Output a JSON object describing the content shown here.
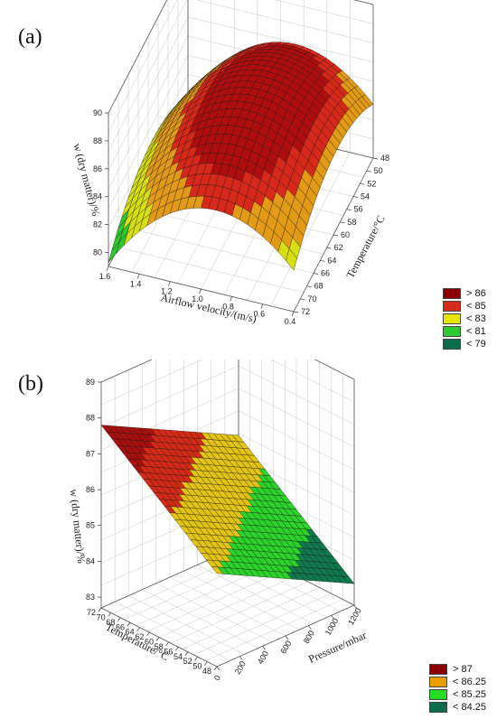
{
  "chart_data": [
    {
      "type": "surface3d",
      "panel_label": "(a)",
      "x_axis": {
        "label": "Airflow velocity/(m/s)",
        "ticks": [
          "1.6",
          "1.4",
          "1.2",
          "1.0",
          "0.8",
          "0.6",
          "0.4"
        ],
        "range": [
          0.4,
          1.6
        ]
      },
      "y_axis": {
        "label": "Temperature/°C",
        "ticks": [
          "48",
          "50",
          "52",
          "54",
          "56",
          "58",
          "60",
          "62",
          "64",
          "66",
          "68",
          "70",
          "72"
        ],
        "range": [
          48,
          72
        ]
      },
      "z_axis": {
        "label": "w (dry matter)/%",
        "ticks": [
          "80",
          "82",
          "84",
          "86",
          "88",
          "90"
        ],
        "range": [
          79,
          90
        ]
      },
      "surface": {
        "shape": "dome",
        "peak": 87.5,
        "peak_at": {
          "x": 0.9,
          "y": 62
        },
        "min_corner": 79
      },
      "legend": [
        {
          "label": "> 86",
          "color": "#8b0000"
        },
        {
          "label": "< 85",
          "color": "#d42a1a"
        },
        {
          "label": "< 83",
          "color": "#e6e600"
        },
        {
          "label": "< 81",
          "color": "#2ecc2e"
        },
        {
          "label": "< 79",
          "color": "#0a6e4a"
        }
      ]
    },
    {
      "type": "surface3d",
      "panel_label": "(b)",
      "x_axis": {
        "label": "Pressure/mbar",
        "ticks": [
          "0",
          "200",
          "400",
          "600",
          "800",
          "1000",
          "1200"
        ],
        "range": [
          0,
          1200
        ]
      },
      "y_axis": {
        "label": "Temperature/°C",
        "ticks": [
          "72",
          "70",
          "68",
          "66",
          "64",
          "62",
          "60",
          "58",
          "56",
          "54",
          "52",
          "50",
          "48"
        ],
        "range": [
          48,
          72
        ]
      },
      "z_axis": {
        "label": "w (dry matter)/%",
        "ticks": [
          "83",
          "84",
          "85",
          "86",
          "87",
          "88",
          "89"
        ],
        "range": [
          82.7,
          89
        ]
      },
      "surface": {
        "shape": "plane",
        "value_at_min_pressure_max_temp": 87.8,
        "value_at_max_pressure_min_temp": 83.5
      },
      "legend": [
        {
          "label": "> 87",
          "color": "#8b0000"
        },
        {
          "label": "< 86.25",
          "color": "#e8a000"
        },
        {
          "label": "< 85.25",
          "color": "#22dd22"
        },
        {
          "label": "< 84.25",
          "color": "#0a6e4a"
        }
      ]
    }
  ]
}
